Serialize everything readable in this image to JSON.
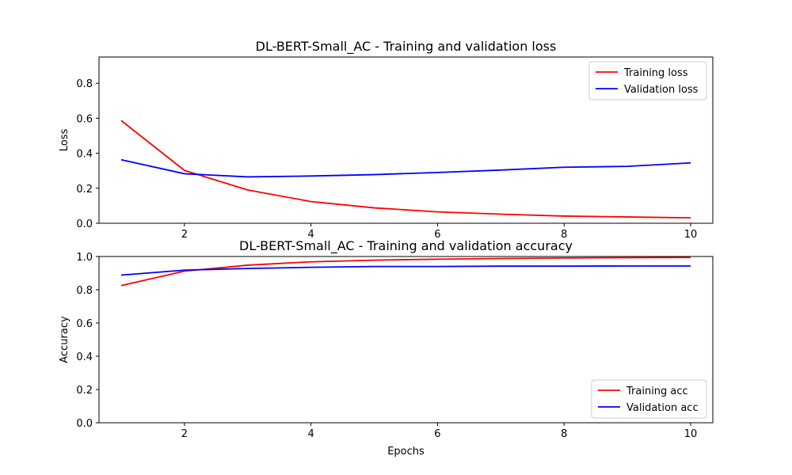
{
  "chart_data": [
    {
      "type": "line",
      "title": "DL-BERT-Small_AC - Training and validation loss",
      "xlabel": "",
      "ylabel": "Loss",
      "xlim": [
        0.65,
        10.35
      ],
      "ylim": [
        0,
        0.95
      ],
      "xticks": [
        2,
        4,
        6,
        8,
        10
      ],
      "yticks": [
        0.0,
        0.2,
        0.4,
        0.6,
        0.8
      ],
      "ytick_labels": [
        "0.0",
        "0.2",
        "0.4",
        "0.6",
        "0.8"
      ],
      "grid": false,
      "legend_position": "top-right",
      "x": [
        1,
        2,
        3,
        4,
        5,
        6,
        7,
        8,
        9,
        10
      ],
      "series": [
        {
          "name": "Training loss",
          "color": "#ff0000",
          "values": [
            0.587,
            0.302,
            0.19,
            0.124,
            0.088,
            0.065,
            0.052,
            0.041,
            0.036,
            0.031
          ]
        },
        {
          "name": "Validation loss",
          "color": "#0000ff",
          "values": [
            0.363,
            0.283,
            0.265,
            0.27,
            0.278,
            0.29,
            0.304,
            0.32,
            0.325,
            0.345
          ]
        }
      ]
    },
    {
      "type": "line",
      "title": "DL-BERT-Small_AC - Training and validation accuracy",
      "xlabel": "Epochs",
      "ylabel": "Accuracy",
      "xlim": [
        0.65,
        10.35
      ],
      "ylim": [
        0,
        1.0
      ],
      "xticks": [
        2,
        4,
        6,
        8,
        10
      ],
      "yticks": [
        0.0,
        0.2,
        0.4,
        0.6,
        0.8,
        1.0
      ],
      "ytick_labels": [
        "0.0",
        "0.2",
        "0.4",
        "0.6",
        "0.8",
        "1.0"
      ],
      "grid": false,
      "legend_position": "bottom-right",
      "x": [
        1,
        2,
        3,
        4,
        5,
        6,
        7,
        8,
        9,
        10
      ],
      "series": [
        {
          "name": "Training acc",
          "color": "#ff0000",
          "values": [
            0.825,
            0.912,
            0.948,
            0.968,
            0.978,
            0.984,
            0.988,
            0.991,
            0.993,
            0.994
          ]
        },
        {
          "name": "Validation acc",
          "color": "#0000ff",
          "values": [
            0.888,
            0.918,
            0.928,
            0.935,
            0.94,
            0.94,
            0.942,
            0.942,
            0.943,
            0.943
          ]
        }
      ]
    }
  ]
}
